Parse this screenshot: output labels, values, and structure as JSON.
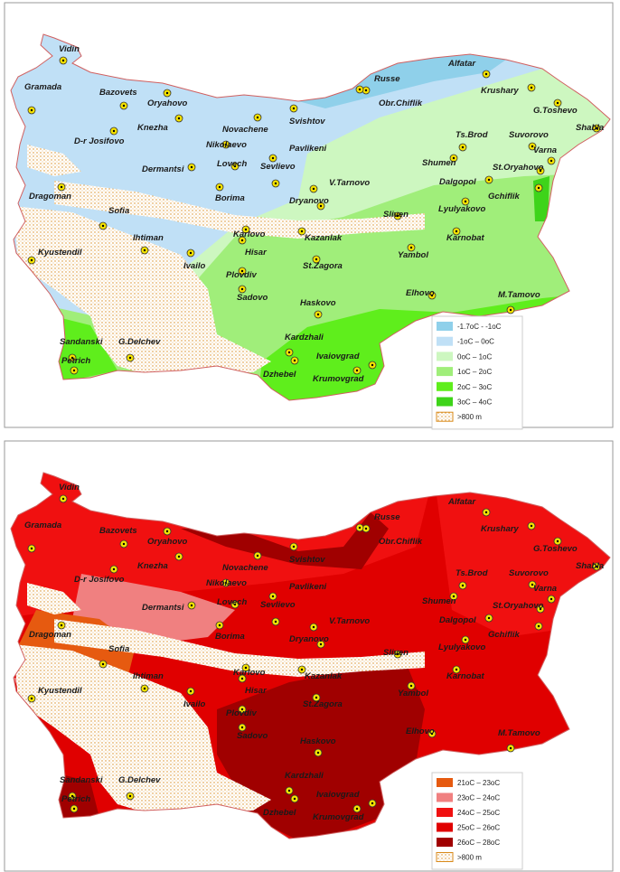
{
  "cities": [
    "Vidin",
    "Gramada",
    "Bazovets",
    "Oryahovo",
    "Knezha",
    "Novachene",
    "Svishtov",
    "Russe",
    "Obr.Chiflik",
    "Alfatar",
    "Krushary",
    "G.Toshevo",
    "Shabla",
    "D-r Josifovo",
    "Nikolaevo",
    "Pavlikeni",
    "Ts.Brod",
    "Suvorovo",
    "Varna",
    "Lovech",
    "Sevlievo",
    "Shumen",
    "Dermantsi",
    "V.Tarnovo",
    "Dalgopol",
    "St.Oryahovo",
    "Gchiflik",
    "Dragoman",
    "Borima",
    "Dryanovo",
    "Lyulyakovo",
    "Sofia",
    "Sliven",
    "Ihtiman",
    "Karlovo",
    "Kazanlak",
    "Karnobat",
    "Kyustendil",
    "Hisar",
    "Yambol",
    "St.Zagora",
    "Ivailo",
    "Plovdiv",
    "Sadovo",
    "Elhovo",
    "M.Tamovo",
    "Haskovo",
    "Sandanski",
    "G.Delchev",
    "Kardzhali",
    "Petrich",
    "Ivaiovgrad",
    "Dzhebel",
    "Krumovgrad"
  ],
  "maps": [
    {
      "legend": [
        "-1.7oC - -1oC",
        "-1oC – 0oC",
        "0oC – 1oC",
        "1oC – 2oC",
        "2oC – 3oC",
        "3oC – 4oC",
        ">800 m"
      ]
    },
    {
      "legend": [
        "21oC – 23oC",
        "23oC – 24oC",
        "24oC – 25oC",
        "25oC – 26oC",
        "26oC – 28oC",
        ">800 m"
      ]
    }
  ]
}
